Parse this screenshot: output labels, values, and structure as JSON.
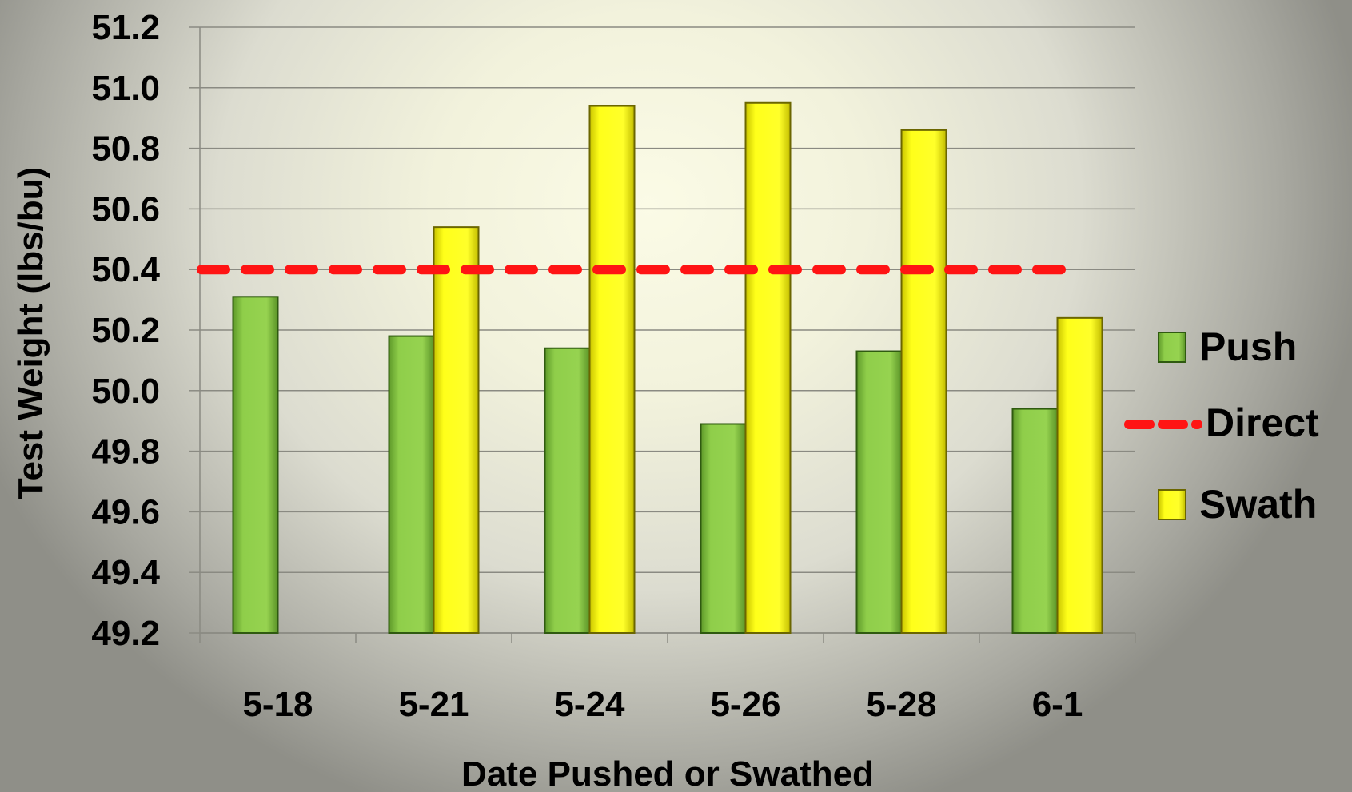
{
  "chart_data": {
    "type": "bar",
    "categories": [
      "5-18",
      "5-21",
      "5-24",
      "5-26",
      "5-28",
      "6-1"
    ],
    "series": [
      {
        "name": "Push",
        "values": [
          50.31,
          50.18,
          50.14,
          49.89,
          50.13,
          49.94
        ],
        "color": "#8fce4a"
      },
      {
        "name": "Swath",
        "values": [
          null,
          50.54,
          50.94,
          50.95,
          50.86,
          50.24
        ],
        "color": "#ffff1a"
      }
    ],
    "reference_line": {
      "name": "Direct",
      "value": 50.4,
      "color": "#ff1414",
      "style": "dashed"
    },
    "xlabel": "Date Pushed or Swathed",
    "ylabel": "Test Weight (lbs/bu)",
    "ylim": [
      49.2,
      51.2
    ],
    "yticks": [
      "49.2",
      "49.4",
      "49.6",
      "49.8",
      "50.0",
      "50.2",
      "50.4",
      "50.6",
      "50.8",
      "51.0",
      "51.2"
    ],
    "grid": true,
    "legend_position": "right"
  },
  "legend": {
    "push_label": "Push",
    "direct_label": "Direct",
    "swath_label": "Swath"
  },
  "axes": {
    "xlabel": "Date Pushed or Swathed",
    "ylabel": "Test Weight (lbs/bu)"
  }
}
